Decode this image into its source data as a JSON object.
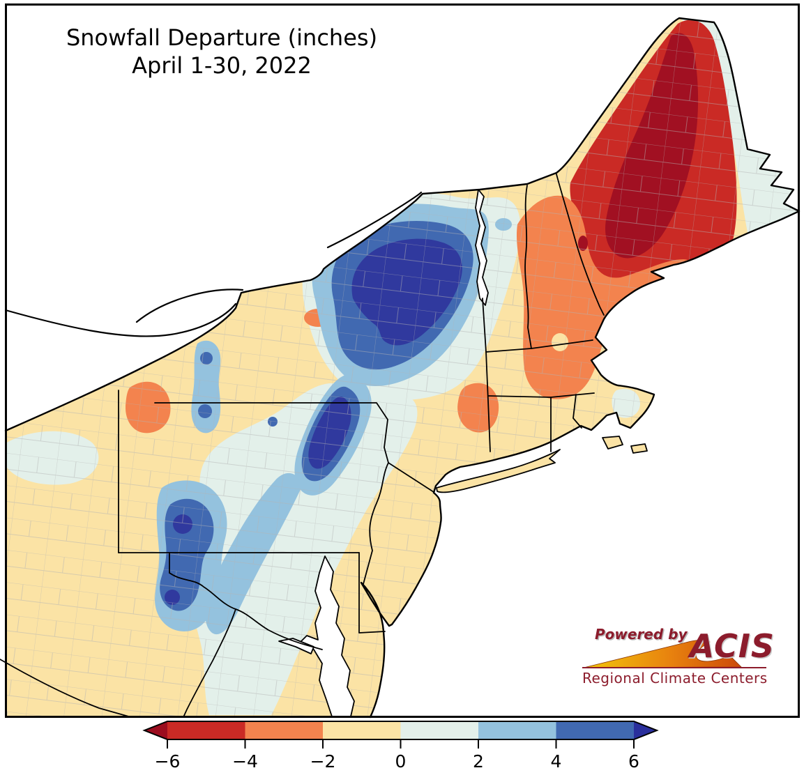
{
  "title": {
    "line1": "Snowfall Departure (inches)",
    "line2": "April 1-30, 2022"
  },
  "logo": {
    "powered_by": "Powered by",
    "acis": "ACIS",
    "subtitle": "Regional Climate Centers"
  },
  "colorbar": {
    "ticks": [
      "−6",
      "−4",
      "−2",
      "0",
      "2",
      "4",
      "6"
    ],
    "segment_colors": [
      "#ca2a25",
      "#f3834e",
      "#fbe3a5",
      "#e3f0ea",
      "#94c2de",
      "#4169b1"
    ],
    "under_color": "#9c0d1f",
    "over_color": "#2a2f9c"
  },
  "palette": {
    "cream": "#fbe3a5",
    "mint": "#e3f0ea",
    "light_blue": "#94c2de",
    "medium_blue": "#4169b1",
    "dark_blue": "#30399e",
    "orange": "#f3834e",
    "red": "#ca2a25",
    "dark_red": "#a11022",
    "water": "#ffffff",
    "county_gray": "#b3b3b3",
    "logo_maroon": "#8c1c2c"
  }
}
